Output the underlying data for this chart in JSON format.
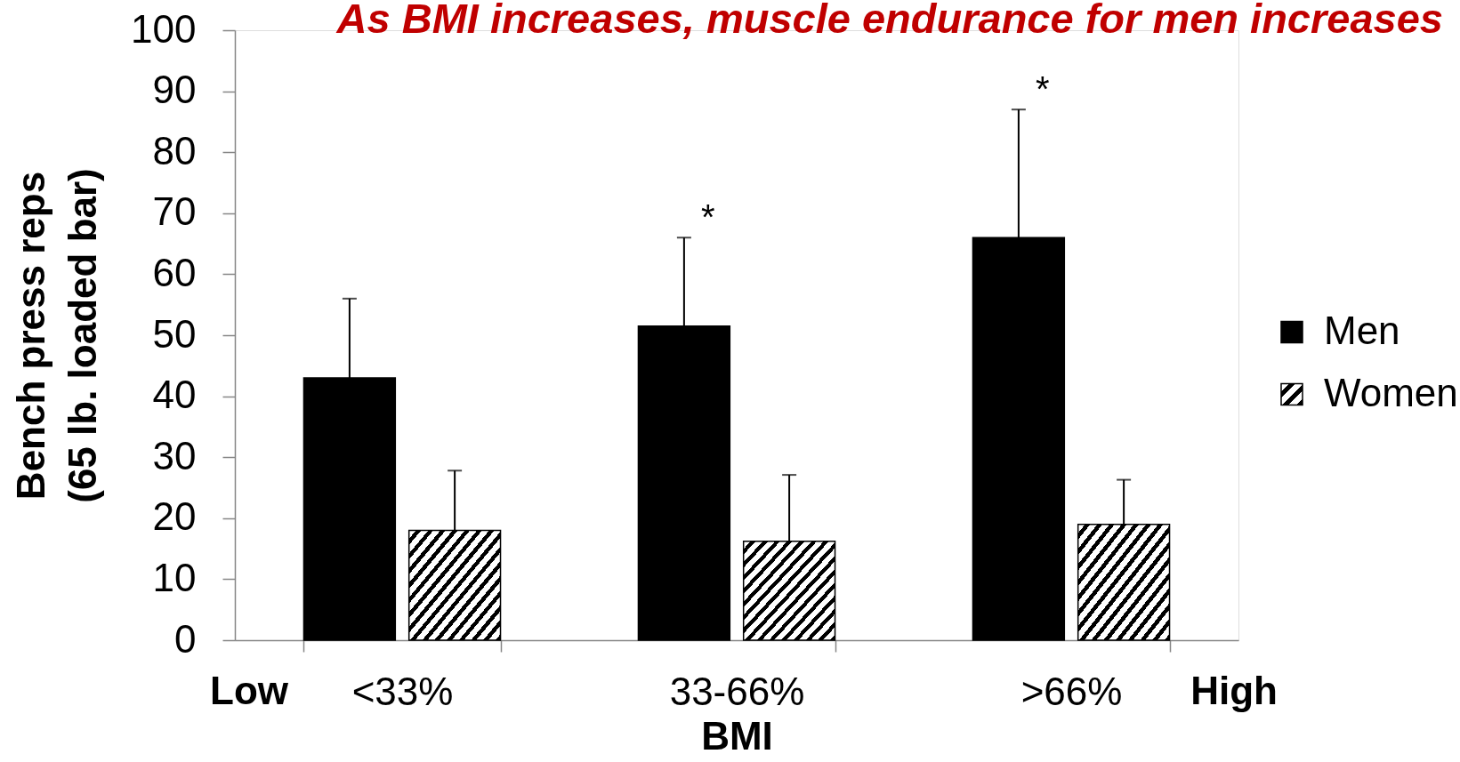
{
  "chart_data": {
    "type": "bar",
    "title": "As BMI increases, muscle endurance for men increases",
    "xlabel": "BMI",
    "ylabel": "Bench press reps\n(65 lb. loaded bar)",
    "categories": [
      "<33%",
      "33-66%",
      ">66%"
    ],
    "series": [
      {
        "name": "Men",
        "color": "#000000",
        "values": [
          43,
          51.5,
          66
        ],
        "errors": [
          [
            43,
            56
          ],
          [
            51.5,
            66
          ],
          [
            66,
            87
          ]
        ]
      },
      {
        "name": "Women",
        "color": "#000000",
        "values": [
          18,
          16.2,
          19
        ],
        "errors": [
          [
            18,
            27.8
          ],
          [
            16.2,
            27.1
          ],
          [
            19,
            26.3
          ]
        ]
      }
    ],
    "ylim": [
      0,
      100
    ],
    "yticks": [
      0,
      10,
      20,
      30,
      40,
      50,
      60,
      70,
      80,
      90,
      100
    ],
    "grid": false,
    "legend": "right",
    "annotations": [
      "Low",
      "High",
      "*",
      "*"
    ]
  }
}
